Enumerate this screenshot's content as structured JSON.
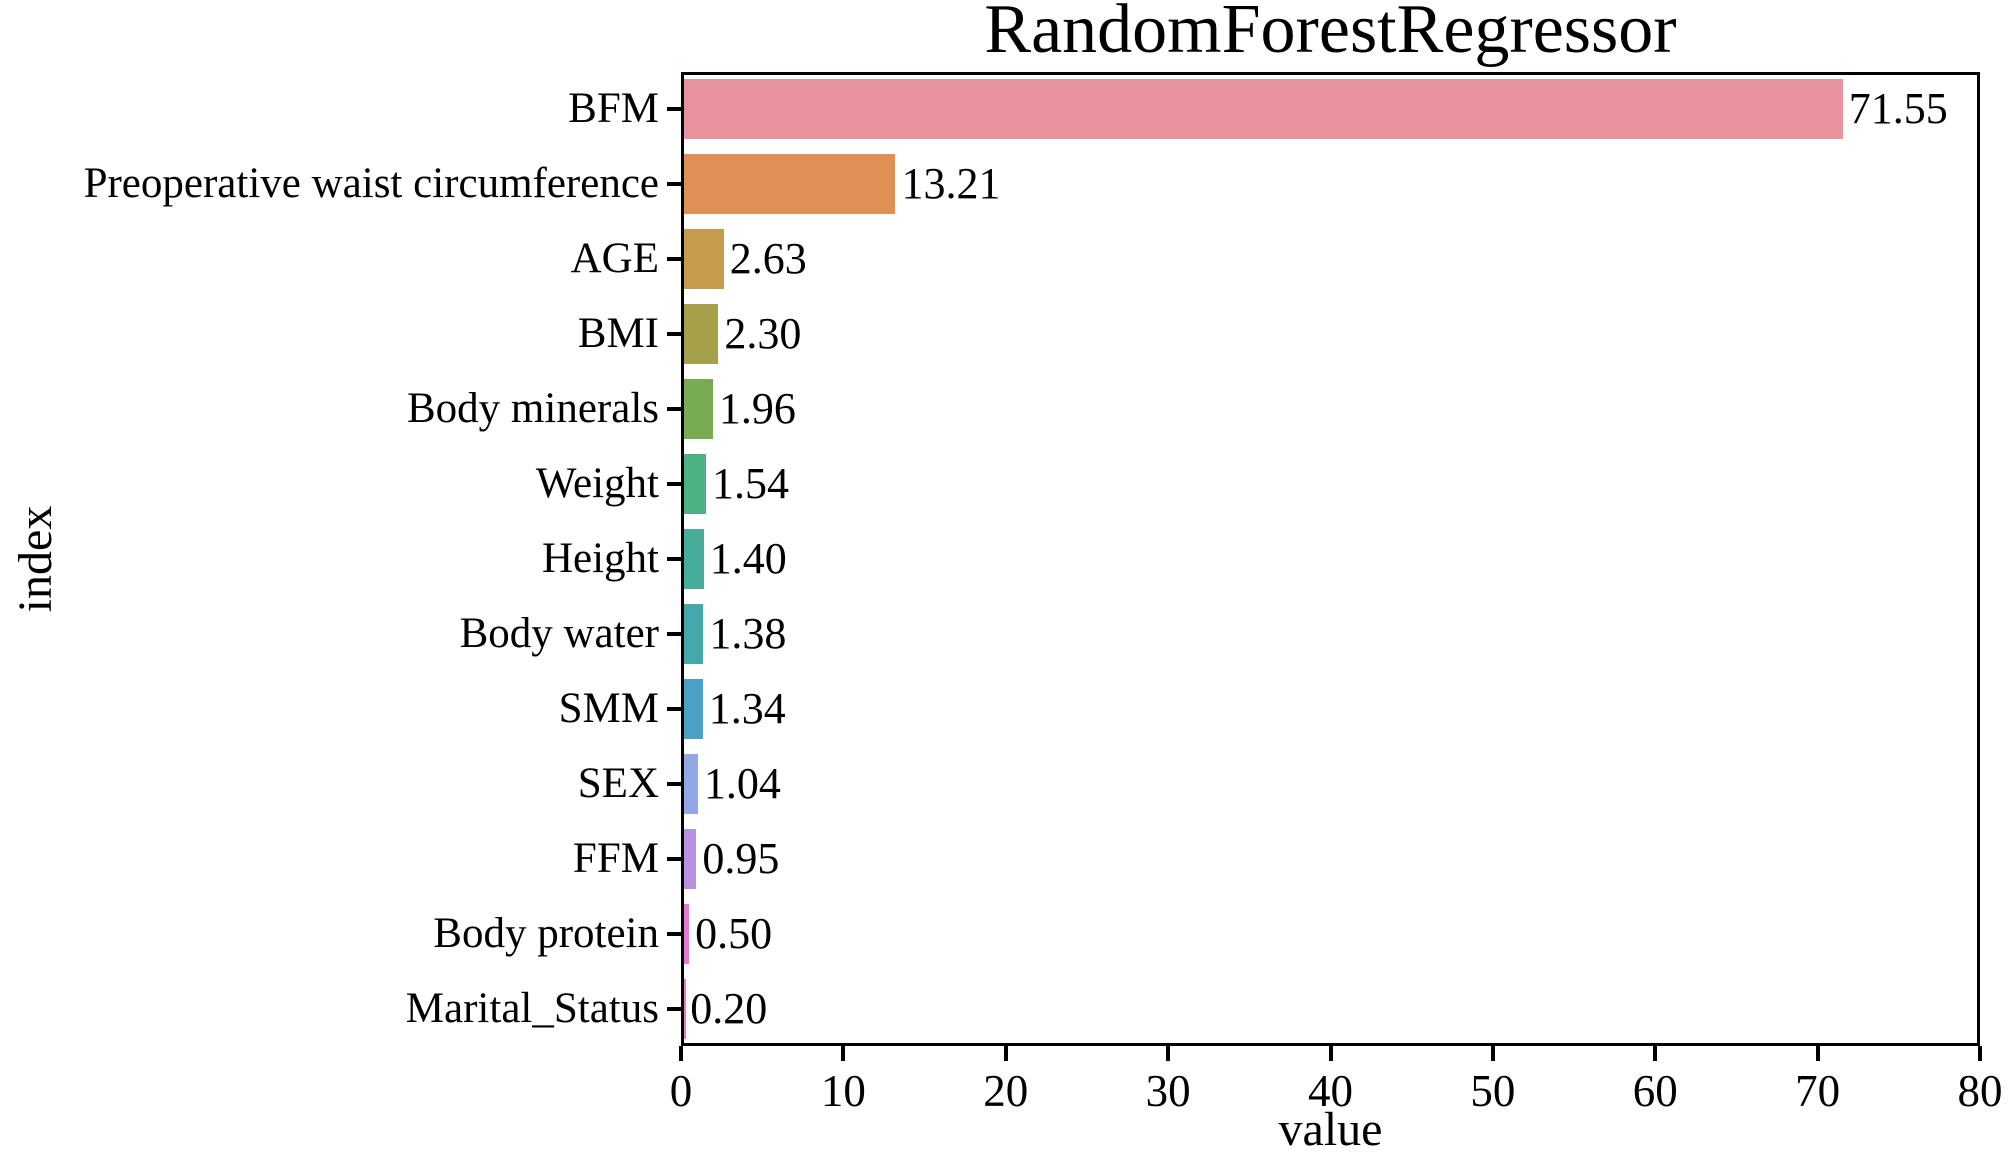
{
  "chart_data": {
    "type": "bar",
    "orientation": "horizontal",
    "title": "RandomForestRegressor",
    "xlabel": "value",
    "ylabel": "index",
    "xlim": [
      0,
      80
    ],
    "x_ticks": [
      "0",
      "10",
      "20",
      "30",
      "40",
      "50",
      "60",
      "70",
      "80"
    ],
    "grid": false,
    "legend_position": "none",
    "categories": [
      "BFM",
      "Preoperative waist circumference",
      "AGE",
      "BMI",
      "Body minerals",
      "Weight",
      "Height",
      "Body water",
      "SMM",
      "SEX",
      "FFM",
      "Body protein",
      "Marital_Status"
    ],
    "values": [
      71.55,
      13.21,
      2.63,
      2.3,
      1.96,
      1.54,
      1.4,
      1.38,
      1.34,
      1.04,
      0.95,
      0.5,
      0.2
    ],
    "value_labels": [
      "71.55",
      "13.21",
      "2.63",
      "2.30",
      "1.96",
      "1.54",
      "1.40",
      "1.38",
      "1.34",
      "1.04",
      "0.95",
      "0.50",
      "0.20"
    ],
    "bar_colors": [
      "#e8919f",
      "#de9055",
      "#c69b4e",
      "#a6a04a",
      "#79ac52",
      "#4db184",
      "#47ac99",
      "#45a8ab",
      "#4ba0c8",
      "#92a7e3",
      "#ba90e3",
      "#e47ad8",
      "#f478bb"
    ]
  },
  "style": {
    "background": "#ffffff",
    "axis_color": "#000000",
    "text_color": "#000000"
  }
}
